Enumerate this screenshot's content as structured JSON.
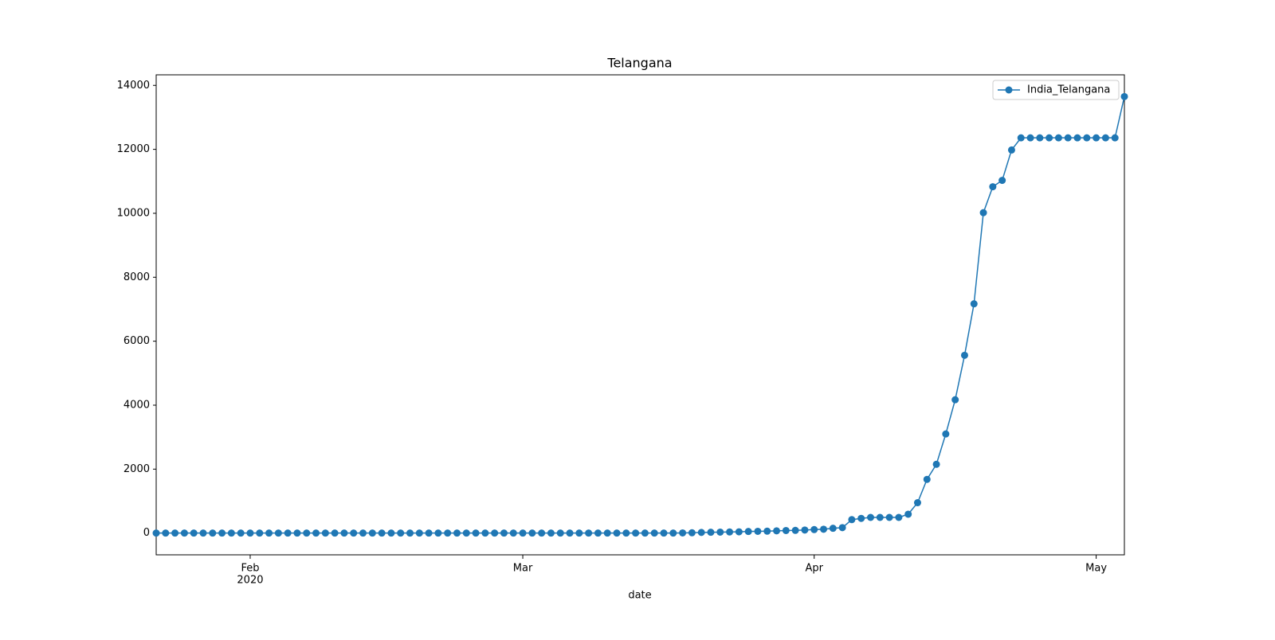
{
  "chart_data": {
    "type": "line",
    "title": "Telangana",
    "xlabel": "date",
    "x": [
      22,
      23,
      24,
      25,
      26,
      27,
      28,
      29,
      30,
      31,
      32,
      33,
      34,
      35,
      36,
      37,
      38,
      39,
      40,
      41,
      42,
      43,
      44,
      45,
      46,
      47,
      48,
      49,
      50,
      51,
      52,
      53,
      54,
      55,
      56,
      57,
      58,
      59,
      60,
      61,
      62,
      63,
      64,
      65,
      66,
      67,
      68,
      69,
      70,
      71,
      72,
      73,
      74,
      75,
      76,
      77,
      78,
      79,
      80,
      81,
      82,
      83,
      84,
      85,
      86,
      87,
      88,
      89,
      90,
      91,
      92,
      93,
      94,
      95,
      96,
      97,
      98,
      99,
      100,
      101,
      102,
      103,
      104,
      105,
      106,
      107,
      108,
      109,
      110,
      111,
      112,
      113,
      114,
      115,
      116,
      117,
      118,
      119,
      120,
      121,
      122,
      123,
      124,
      125
    ],
    "series": [
      {
        "name": "India_Telangana",
        "color": "#1f77b4",
        "values": [
          0,
          0,
          0,
          0,
          0,
          0,
          0,
          0,
          0,
          0,
          0,
          0,
          0,
          0,
          0,
          0,
          0,
          0,
          0,
          0,
          0,
          0,
          0,
          0,
          0,
          0,
          0,
          0,
          0,
          0,
          0,
          0,
          0,
          0,
          0,
          0,
          0,
          0,
          0,
          0,
          0,
          0,
          0,
          0,
          0,
          0,
          0,
          0,
          0,
          0,
          0,
          0,
          0,
          0,
          0,
          0,
          5,
          10,
          20,
          25,
          30,
          35,
          40,
          50,
          55,
          60,
          70,
          80,
          85,
          95,
          110,
          120,
          150,
          170,
          420,
          460,
          490,
          490,
          490,
          490,
          590,
          950,
          1680,
          2150,
          3100,
          4170,
          5560,
          7170,
          10020,
          10830,
          11030,
          11980,
          12360,
          12360,
          12360,
          12360,
          12360,
          12360,
          12360,
          12360,
          12360,
          12360,
          12360,
          13650
        ]
      }
    ],
    "xlim": [
      22,
      125
    ],
    "xticks": [
      {
        "value": 32,
        "label": "Feb"
      },
      {
        "value": 61,
        "label": "Mar"
      },
      {
        "value": 92,
        "label": "Apr"
      },
      {
        "value": 122,
        "label": "May"
      }
    ],
    "x_year_label": "2020",
    "ylim": [
      -680,
      14330
    ],
    "yticks": [
      0,
      2000,
      4000,
      6000,
      8000,
      10000,
      12000,
      14000
    ],
    "grid": false,
    "legend": "upper right"
  }
}
